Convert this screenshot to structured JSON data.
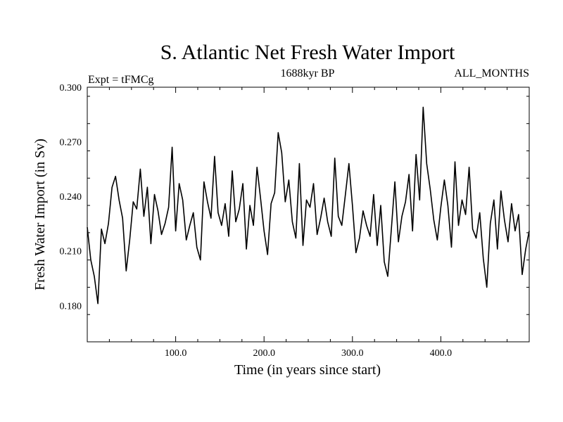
{
  "chart_data": {
    "type": "line",
    "title": "S. Atlantic Net Fresh Water Import",
    "experiment_label": "Expt = tFMCg",
    "period_label": "1688kyr BP",
    "months_label": "ALL_MONTHS",
    "xlabel": "Time (in years since start)",
    "ylabel": "Fresh Water Import (in Sv)",
    "xlim": [
      0,
      500
    ],
    "ylim": [
      0.16,
      0.3
    ],
    "x_ticks": [
      100,
      200,
      300,
      400
    ],
    "x_tick_labels": [
      "100.0",
      "200.0",
      "300.0",
      "400.0"
    ],
    "y_ticks": [
      0.18,
      0.21,
      0.24,
      0.27,
      0.3
    ],
    "y_tick_labels": [
      "0.180",
      "0.210",
      "0.240",
      "0.270",
      "0.300"
    ],
    "series": [
      {
        "name": "net fresh water import",
        "color": "#000000",
        "x": [
          0,
          4,
          8,
          12,
          16,
          20,
          24,
          28,
          32,
          36,
          40,
          44,
          48,
          52,
          56,
          60,
          64,
          68,
          72,
          76,
          80,
          84,
          88,
          92,
          96,
          100,
          104,
          108,
          112,
          116,
          120,
          124,
          128,
          132,
          136,
          140,
          144,
          148,
          152,
          156,
          160,
          164,
          168,
          172,
          176,
          180,
          184,
          188,
          192,
          196,
          200,
          204,
          208,
          212,
          216,
          220,
          224,
          228,
          232,
          236,
          240,
          244,
          248,
          252,
          256,
          260,
          264,
          268,
          272,
          276,
          280,
          284,
          288,
          292,
          296,
          300,
          304,
          308,
          312,
          316,
          320,
          324,
          328,
          332,
          336,
          340,
          344,
          348,
          352,
          356,
          360,
          364,
          368,
          372,
          376,
          380,
          384,
          388,
          392,
          396,
          400,
          404,
          408,
          412,
          416,
          420,
          424,
          428,
          432,
          436,
          440,
          444,
          448,
          452,
          456,
          460,
          464,
          468,
          472,
          476,
          480,
          484,
          488,
          492,
          496,
          500
        ],
        "values": [
          0.223,
          0.205,
          0.196,
          0.181,
          0.222,
          0.214,
          0.225,
          0.245,
          0.251,
          0.238,
          0.228,
          0.199,
          0.216,
          0.237,
          0.233,
          0.255,
          0.229,
          0.245,
          0.214,
          0.241,
          0.232,
          0.219,
          0.225,
          0.234,
          0.267,
          0.221,
          0.247,
          0.238,
          0.216,
          0.224,
          0.231,
          0.212,
          0.205,
          0.248,
          0.237,
          0.228,
          0.262,
          0.231,
          0.224,
          0.236,
          0.218,
          0.254,
          0.226,
          0.233,
          0.247,
          0.211,
          0.235,
          0.224,
          0.256,
          0.239,
          0.221,
          0.208,
          0.236,
          0.242,
          0.275,
          0.264,
          0.237,
          0.249,
          0.226,
          0.217,
          0.258,
          0.213,
          0.238,
          0.234,
          0.247,
          0.219,
          0.228,
          0.239,
          0.226,
          0.218,
          0.261,
          0.229,
          0.224,
          0.241,
          0.258,
          0.235,
          0.209,
          0.217,
          0.232,
          0.224,
          0.218,
          0.241,
          0.213,
          0.235,
          0.204,
          0.196,
          0.222,
          0.248,
          0.215,
          0.229,
          0.237,
          0.252,
          0.221,
          0.263,
          0.238,
          0.289,
          0.258,
          0.244,
          0.227,
          0.216,
          0.234,
          0.249,
          0.235,
          0.212,
          0.259,
          0.224,
          0.238,
          0.23,
          0.256,
          0.222,
          0.217,
          0.231,
          0.206,
          0.19,
          0.225,
          0.238,
          0.211,
          0.243,
          0.227,
          0.215,
          0.236,
          0.221,
          0.23,
          0.197,
          0.211,
          0.221
        ]
      }
    ]
  }
}
